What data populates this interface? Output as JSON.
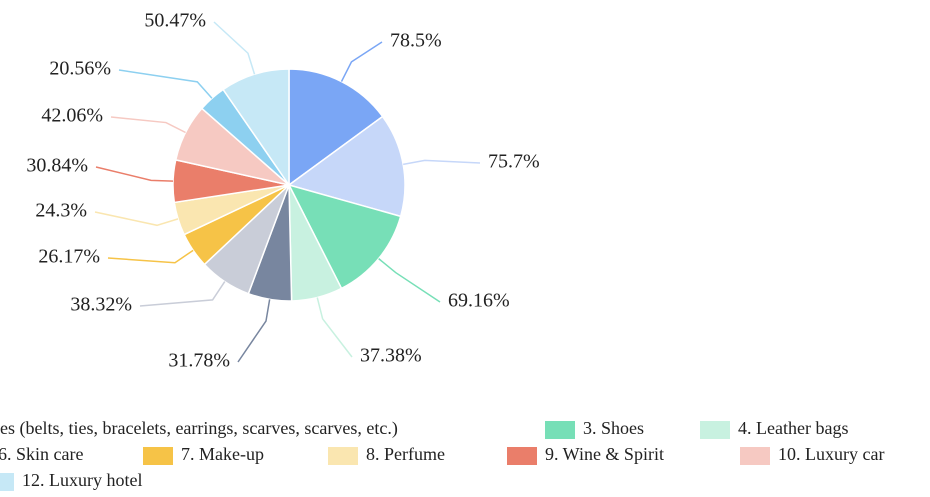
{
  "chart_data": {
    "type": "pie",
    "categories": [
      null,
      "es (belts, ties, bracelets, earrings, scarves, scarves, etc.)",
      "3. Shoes",
      "4. Leather bags",
      null,
      "6. Skin care",
      "7. Make-up",
      "8. Perfume",
      "9. Wine & Spirit",
      "10. Luxury car",
      null,
      "12. Luxury hotel"
    ],
    "values": [
      78.5,
      75.7,
      69.16,
      37.38,
      31.78,
      38.32,
      26.17,
      24.3,
      30.84,
      42.06,
      20.56,
      50.47
    ],
    "value_labels": [
      "78.5%",
      "75.7%",
      "69.16%",
      "37.38%",
      "31.78%",
      "38.32%",
      "26.17%",
      "24.3%",
      "30.84%",
      "42.06%",
      "20.56%",
      "50.47%"
    ],
    "colors": [
      "#7aa6f5",
      "#c6d7f9",
      "#77dfb7",
      "#c8f1e0",
      "#78869f",
      "#c9cdd8",
      "#f6c347",
      "#fae6b0",
      "#ea7e6a",
      "#f6c9c2",
      "#8dd0f0",
      "#c6e8f6"
    ]
  }
}
